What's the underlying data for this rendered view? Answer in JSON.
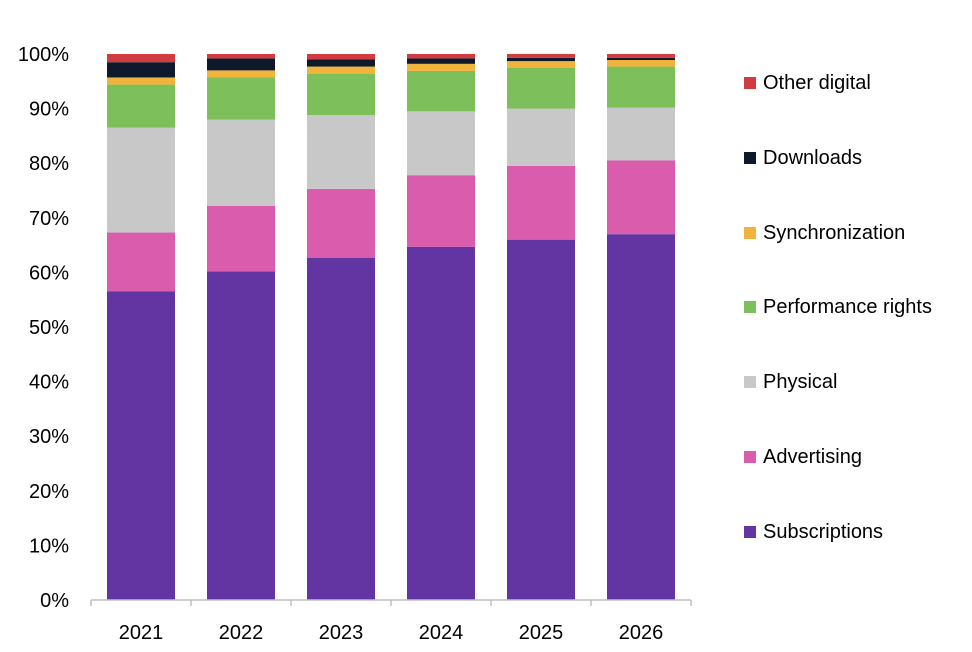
{
  "chart_data": {
    "type": "bar",
    "stacked": true,
    "categories": [
      "2021",
      "2022",
      "2023",
      "2024",
      "2025",
      "2026"
    ],
    "ylim": [
      0,
      100
    ],
    "yticks": [
      "0%",
      "10%",
      "20%",
      "30%",
      "40%",
      "50%",
      "60%",
      "70%",
      "80%",
      "90%",
      "100%"
    ],
    "grid": false,
    "legend_position": "right",
    "series": [
      {
        "name": "Subscriptions",
        "color": "#6335A2",
        "values": [
          56.5,
          60.2,
          62.7,
          64.7,
          66.0,
          67.0
        ]
      },
      {
        "name": "Advertising",
        "color": "#DA5CAC",
        "values": [
          10.8,
          12.0,
          12.6,
          13.1,
          13.5,
          13.5
        ]
      },
      {
        "name": "Physical",
        "color": "#C8C8C8",
        "values": [
          19.2,
          15.8,
          13.5,
          11.7,
          10.5,
          9.7
        ]
      },
      {
        "name": "Performance rights",
        "color": "#7DBF5B",
        "values": [
          7.9,
          7.7,
          7.6,
          7.4,
          7.5,
          7.5
        ]
      },
      {
        "name": "Synchronization",
        "color": "#F0B43C",
        "values": [
          1.3,
          1.3,
          1.3,
          1.3,
          1.2,
          1.2
        ]
      },
      {
        "name": "Downloads",
        "color": "#0E1A2B",
        "values": [
          2.8,
          2.2,
          1.3,
          1.0,
          0.6,
          0.4
        ]
      },
      {
        "name": "Other digital",
        "color": "#D13C40",
        "values": [
          1.5,
          0.8,
          1.0,
          0.8,
          0.7,
          0.7
        ]
      }
    ]
  }
}
